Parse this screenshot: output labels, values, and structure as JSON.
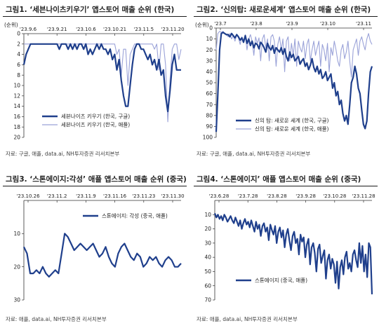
{
  "panels": [
    {
      "title": "그림1. ‘세븐나이츠키우기’ 앱스토어 매출 순위 (한국)",
      "source": "자료: 구글, 애플, data.ai, NH투자증권 리서치본부"
    },
    {
      "title": "그림2. ‘신의탑: 새로운세계’ 앱스토어 매출 순위 (한국)",
      "source": "자료: 구글, 애플, data.ai, NH투자증권 리서치본부"
    },
    {
      "title": "그림3. ‘스톤에이지:각성’ 애플 앱스토어 매출 순위 (중국)",
      "source": "자료: 애플, data.ai, NH투자증권 리서치본부"
    },
    {
      "title": "그림4. ‘스톤에이지’ 애플 앱스토어 매출 순위 (중국)",
      "source": "자료: 애플, data.ai, NH투자증권 리서치본부"
    }
  ],
  "colors": {
    "dark": "#1f3f8c",
    "light": "#9aa2d8"
  },
  "chart_data": [
    {
      "type": "line",
      "ylabel": "(순위)",
      "y_inverted": true,
      "ylim": [
        20,
        0
      ],
      "yticks": [
        0,
        2,
        4,
        6,
        8,
        10,
        12,
        14,
        16,
        18,
        20
      ],
      "xticks": [
        "'23.9.6",
        "'23.9.21",
        "'23.10.6",
        "'23.10.21",
        "'23.11.5",
        "'23.11.20"
      ],
      "legend_position": "lower-left",
      "series": [
        {
          "name": "세븐나이츠 키우기 (한국, 구글)",
          "style": "dark",
          "values": [
            6,
            4,
            3,
            2,
            2,
            2,
            2,
            2,
            2,
            2,
            2,
            2,
            2,
            2,
            2,
            2,
            3,
            2,
            2,
            2,
            3,
            2,
            3,
            2,
            3,
            2,
            2,
            3,
            2,
            4,
            3,
            4,
            3,
            2,
            3,
            2,
            3,
            3,
            4,
            3,
            5,
            4,
            7,
            5,
            9,
            12,
            14,
            14,
            10,
            6,
            3,
            2,
            2,
            3,
            3,
            4,
            5,
            4,
            6,
            5,
            7,
            5,
            8,
            7,
            12,
            15,
            11,
            6,
            4,
            7,
            7,
            7
          ]
        },
        {
          "name": "세븐나이츠 키우기 (한국, 애플)",
          "style": "light",
          "values": [
            2,
            2,
            2,
            2,
            2,
            2,
            2,
            2,
            2,
            2,
            2,
            2,
            2,
            2,
            2,
            2,
            2,
            2,
            2,
            2,
            2,
            2,
            2,
            2,
            2,
            2,
            2,
            2,
            2,
            2,
            2,
            2,
            2,
            2,
            2,
            2,
            2,
            2,
            2,
            2,
            2,
            2,
            4,
            3,
            8,
            3,
            3,
            10,
            4,
            3,
            2,
            2,
            2,
            2,
            2,
            2,
            2,
            2,
            2,
            3,
            2,
            7,
            2,
            2,
            6,
            17,
            9,
            3,
            2,
            2,
            5,
            3
          ]
        }
      ]
    },
    {
      "type": "line",
      "ylabel": "(순위)",
      "y_inverted": true,
      "ylim": [
        100,
        0
      ],
      "yticks": [
        0,
        10,
        20,
        30,
        40,
        50,
        60,
        70,
        80,
        90,
        100
      ],
      "xticks": [
        "'23.7",
        "'23.8",
        "'23.9",
        "'23.10",
        "'23.11"
      ],
      "legend_position": "lower-left",
      "series": [
        {
          "name": "신의 탑: 새로운 세계 (한국, 구글)",
          "style": "dark",
          "values": [
            95,
            60,
            20,
            5,
            4,
            5,
            6,
            6,
            8,
            5,
            7,
            9,
            6,
            8,
            11,
            9,
            13,
            7,
            14,
            10,
            16,
            12,
            18,
            14,
            15,
            19,
            13,
            15,
            18,
            22,
            14,
            18,
            20,
            16,
            23,
            18,
            20,
            22,
            18,
            24,
            19,
            26,
            30,
            22,
            27,
            24,
            30,
            28,
            26,
            33,
            30,
            28,
            35,
            32,
            38,
            34,
            28,
            36,
            40,
            35,
            42,
            38,
            46,
            44,
            40,
            48,
            45,
            42,
            55,
            50,
            62,
            58,
            70,
            66,
            78,
            85,
            80,
            88,
            70,
            50,
            45,
            35,
            42,
            55,
            60,
            75,
            88,
            92,
            85,
            60,
            40,
            35
          ]
        },
        {
          "name": "신의 탑: 새로운 세계 (한국, 애플)",
          "style": "light",
          "values": [
            20,
            5,
            3,
            4,
            3,
            5,
            6,
            8,
            5,
            10,
            7,
            12,
            6,
            9,
            15,
            8,
            12,
            6,
            20,
            10,
            6,
            12,
            25,
            8,
            14,
            9,
            30,
            10,
            6,
            18,
            10,
            30,
            8,
            6,
            12,
            35,
            15,
            8,
            20,
            10,
            40,
            12,
            8,
            30,
            14,
            25,
            10,
            35,
            12,
            18,
            22,
            12,
            28,
            15,
            10,
            30,
            20,
            12,
            25,
            18,
            12,
            35,
            15,
            20,
            30,
            14,
            40,
            18,
            25,
            12,
            20,
            30,
            35,
            20,
            15,
            28,
            22,
            12,
            30,
            45,
            20,
            15,
            10,
            25,
            12,
            8,
            15,
            20,
            10,
            5,
            12,
            15
          ]
        }
      ]
    },
    {
      "type": "line",
      "y_inverted": true,
      "ylim": [
        30,
        0
      ],
      "yticks": [
        10,
        20,
        30
      ],
      "xticks": [
        "'23.10.26",
        "'23.11.2",
        "'23.11.9",
        "'23.11.16",
        "'23.11.23",
        "'23.11.30"
      ],
      "legend_position": "top-right",
      "series": [
        {
          "name": "스톤에이지: 각성 (중국, 애플)",
          "style": "dark",
          "values": [
            14,
            16,
            22,
            22,
            21,
            22,
            20,
            22,
            23,
            22,
            21,
            22,
            16,
            10,
            11,
            13,
            15,
            14,
            13,
            14,
            15,
            14,
            13,
            15,
            17,
            16,
            14,
            17,
            19,
            20,
            16,
            14,
            13,
            15,
            17,
            18,
            16,
            17,
            20,
            19,
            17,
            18,
            17,
            19,
            20,
            18,
            17,
            18,
            20,
            20,
            19
          ]
        }
      ]
    },
    {
      "type": "line",
      "y_inverted": true,
      "ylim": [
        70,
        0
      ],
      "yticks": [
        10,
        20,
        30,
        40,
        50,
        60,
        70
      ],
      "xticks": [
        "'23.6.28",
        "'23.7.28",
        "'23.8.28",
        "'23.9.28",
        "'23.10.28",
        "'23.11.28"
      ],
      "legend_position": "lower-left",
      "series": [
        {
          "name": "스톤에이지 (중국, 애플)",
          "style": "dark",
          "values": [
            9,
            12,
            10,
            13,
            11,
            14,
            10,
            12,
            15,
            13,
            11,
            14,
            16,
            12,
            15,
            18,
            14,
            20,
            16,
            13,
            17,
            15,
            19,
            14,
            18,
            22,
            15,
            20,
            17,
            25,
            18,
            16,
            22,
            19,
            28,
            17,
            21,
            24,
            18,
            30,
            22,
            19,
            26,
            21,
            33,
            24,
            20,
            28,
            35,
            25,
            22,
            30,
            27,
            38,
            24,
            29,
            26,
            40,
            31,
            27,
            45,
            33,
            30,
            37,
            50,
            34,
            31,
            44,
            39,
            35,
            55,
            42,
            38,
            48,
            41,
            45,
            58,
            43,
            62,
            47,
            42,
            52,
            40,
            36,
            48,
            44,
            50,
            38,
            35,
            42,
            47,
            30,
            44,
            32,
            50,
            38,
            54,
            30,
            33,
            66
          ]
        }
      ]
    }
  ]
}
